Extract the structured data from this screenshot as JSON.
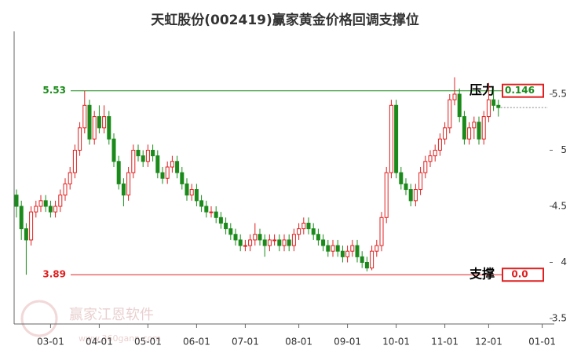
{
  "chart_data": {
    "type": "candlestick",
    "title": "天虹股份(002419)赢家黄金价格回调支撑位",
    "watermark": "赢家江恩软件",
    "watermark_url": "www.360gann.com",
    "up_color": "#e02020",
    "down_color": "#1a8a1a",
    "ylim": [
      3.5,
      6.0
    ],
    "yticks": [
      3.5,
      4,
      4.5,
      5,
      5.5
    ],
    "resistance": {
      "value": 5.53,
      "label": "5.53",
      "name": "压力",
      "distance": 0.146,
      "color": "#1a8a1a"
    },
    "support": {
      "value": 3.89,
      "label": "3.89",
      "name": "支撑",
      "distance": 0,
      "distance_label": "0.0",
      "color": "#e02020"
    },
    "categories": [
      null,
      null,
      null,
      null,
      null,
      null,
      null,
      "03-01",
      null,
      null,
      null,
      null,
      null,
      null,
      null,
      null,
      null,
      "04-01",
      null,
      null,
      null,
      null,
      null,
      null,
      null,
      null,
      null,
      "05-01",
      null,
      null,
      null,
      null,
      null,
      null,
      null,
      null,
      null,
      "06-01",
      null,
      null,
      null,
      null,
      null,
      null,
      null,
      null,
      null,
      "07-01",
      null,
      null,
      null,
      null,
      null,
      null,
      null,
      null,
      null,
      null,
      "08-01",
      null,
      null,
      null,
      null,
      null,
      null,
      null,
      null,
      null,
      "09-01",
      null,
      null,
      null,
      null,
      null,
      null,
      null,
      null,
      null,
      "10-01",
      null,
      null,
      null,
      null,
      null,
      null,
      null,
      null,
      null,
      "11-01",
      null,
      null,
      null,
      null,
      null,
      null,
      null,
      null,
      "12-01",
      null,
      null,
      null,
      null,
      null,
      null,
      null,
      null,
      null,
      null,
      "01-01",
      null,
      null
    ],
    "ohlc": [
      [
        4.6,
        4.65,
        4.4,
        4.5
      ],
      [
        4.5,
        4.55,
        4.2,
        4.3
      ],
      [
        4.3,
        4.35,
        3.89,
        4.2
      ],
      [
        4.2,
        4.5,
        4.15,
        4.45
      ],
      [
        4.45,
        4.55,
        4.4,
        4.5
      ],
      [
        4.5,
        4.6,
        4.45,
        4.55
      ],
      [
        4.55,
        4.6,
        4.45,
        4.5
      ],
      [
        4.5,
        4.55,
        4.4,
        4.45
      ],
      [
        4.45,
        4.55,
        4.4,
        4.5
      ],
      [
        4.5,
        4.65,
        4.45,
        4.6
      ],
      [
        4.6,
        4.75,
        4.55,
        4.7
      ],
      [
        4.7,
        4.85,
        4.65,
        4.8
      ],
      [
        4.8,
        5.05,
        4.75,
        5.0
      ],
      [
        5.0,
        5.25,
        4.95,
        5.2
      ],
      [
        5.2,
        5.53,
        5.15,
        5.4
      ],
      [
        5.4,
        5.45,
        5.05,
        5.1
      ],
      [
        5.1,
        5.35,
        5.05,
        5.3
      ],
      [
        5.3,
        5.4,
        5.15,
        5.2
      ],
      [
        5.2,
        5.4,
        5.15,
        5.3
      ],
      [
        5.3,
        5.35,
        5.05,
        5.1
      ],
      [
        5.1,
        5.15,
        4.85,
        4.9
      ],
      [
        4.9,
        4.95,
        4.65,
        4.7
      ],
      [
        4.7,
        4.75,
        4.5,
        4.6
      ],
      [
        4.6,
        4.85,
        4.55,
        4.8
      ],
      [
        4.8,
        5.05,
        4.75,
        5.0
      ],
      [
        5.0,
        5.05,
        4.9,
        4.95
      ],
      [
        4.95,
        5.0,
        4.85,
        4.9
      ],
      [
        4.9,
        5.05,
        4.85,
        5.0
      ],
      [
        5.0,
        5.05,
        4.9,
        4.95
      ],
      [
        4.95,
        5.0,
        4.75,
        4.8
      ],
      [
        4.8,
        4.85,
        4.7,
        4.75
      ],
      [
        4.75,
        4.9,
        4.7,
        4.85
      ],
      [
        4.85,
        4.95,
        4.8,
        4.9
      ],
      [
        4.9,
        4.95,
        4.75,
        4.8
      ],
      [
        4.8,
        4.85,
        4.65,
        4.7
      ],
      [
        4.7,
        4.75,
        4.55,
        4.6
      ],
      [
        4.6,
        4.7,
        4.55,
        4.65
      ],
      [
        4.65,
        4.7,
        4.5,
        4.55
      ],
      [
        4.55,
        4.6,
        4.45,
        4.5
      ],
      [
        4.5,
        4.55,
        4.4,
        4.45
      ],
      [
        4.45,
        4.5,
        4.4,
        4.45
      ],
      [
        4.45,
        4.5,
        4.35,
        4.4
      ],
      [
        4.4,
        4.45,
        4.3,
        4.35
      ],
      [
        4.35,
        4.4,
        4.25,
        4.3
      ],
      [
        4.3,
        4.35,
        4.2,
        4.25
      ],
      [
        4.25,
        4.3,
        4.15,
        4.2
      ],
      [
        4.2,
        4.25,
        4.1,
        4.15
      ],
      [
        4.15,
        4.2,
        4.1,
        4.15
      ],
      [
        4.15,
        4.25,
        4.1,
        4.2
      ],
      [
        4.2,
        4.35,
        4.15,
        4.25
      ],
      [
        4.25,
        4.3,
        4.15,
        4.2
      ],
      [
        4.2,
        4.25,
        4.05,
        4.15
      ],
      [
        4.15,
        4.25,
        4.1,
        4.2
      ],
      [
        4.2,
        4.25,
        4.15,
        4.2
      ],
      [
        4.2,
        4.25,
        4.1,
        4.15
      ],
      [
        4.15,
        4.25,
        4.1,
        4.2
      ],
      [
        4.2,
        4.25,
        4.1,
        4.15
      ],
      [
        4.15,
        4.3,
        4.1,
        4.25
      ],
      [
        4.25,
        4.35,
        4.2,
        4.3
      ],
      [
        4.3,
        4.4,
        4.25,
        4.35
      ],
      [
        4.35,
        4.4,
        4.25,
        4.3
      ],
      [
        4.3,
        4.35,
        4.2,
        4.25
      ],
      [
        4.25,
        4.3,
        4.15,
        4.2
      ],
      [
        4.2,
        4.25,
        4.1,
        4.15
      ],
      [
        4.15,
        4.2,
        4.05,
        4.1
      ],
      [
        4.1,
        4.2,
        4.05,
        4.15
      ],
      [
        4.15,
        4.2,
        4.05,
        4.1
      ],
      [
        4.1,
        4.15,
        4.0,
        4.05
      ],
      [
        4.05,
        4.15,
        4.0,
        4.1
      ],
      [
        4.1,
        4.2,
        4.05,
        4.15
      ],
      [
        4.15,
        4.2,
        4.0,
        4.05
      ],
      [
        4.05,
        4.1,
        3.95,
        4.0
      ],
      [
        4.0,
        4.05,
        3.92,
        3.95
      ],
      [
        3.95,
        4.15,
        3.93,
        4.1
      ],
      [
        4.1,
        4.2,
        4.05,
        4.15
      ],
      [
        4.15,
        4.45,
        4.1,
        4.4
      ],
      [
        4.4,
        4.85,
        4.35,
        4.8
      ],
      [
        4.8,
        5.45,
        4.75,
        5.4
      ],
      [
        5.4,
        5.45,
        4.75,
        4.8
      ],
      [
        4.8,
        4.85,
        4.65,
        4.7
      ],
      [
        4.7,
        4.75,
        4.6,
        4.65
      ],
      [
        4.65,
        4.7,
        4.5,
        4.55
      ],
      [
        4.55,
        4.7,
        4.5,
        4.65
      ],
      [
        4.65,
        4.85,
        4.6,
        4.8
      ],
      [
        4.8,
        4.95,
        4.75,
        4.9
      ],
      [
        4.9,
        5.0,
        4.85,
        4.95
      ],
      [
        4.95,
        5.05,
        4.9,
        5.0
      ],
      [
        5.0,
        5.15,
        4.95,
        5.1
      ],
      [
        5.1,
        5.25,
        5.05,
        5.2
      ],
      [
        5.2,
        5.5,
        5.15,
        5.45
      ],
      [
        5.45,
        5.65,
        5.4,
        5.5
      ],
      [
        5.5,
        5.55,
        5.25,
        5.3
      ],
      [
        5.3,
        5.35,
        5.05,
        5.1
      ],
      [
        5.1,
        5.25,
        5.05,
        5.2
      ],
      [
        5.2,
        5.3,
        5.1,
        5.25
      ],
      [
        5.25,
        5.3,
        5.05,
        5.1
      ],
      [
        5.1,
        5.35,
        5.05,
        5.3
      ],
      [
        5.3,
        5.6,
        5.25,
        5.45
      ],
      [
        5.45,
        5.55,
        5.35,
        5.4
      ],
      [
        5.4,
        5.45,
        5.3,
        5.38
      ],
      null,
      null,
      null,
      null,
      null,
      null,
      null,
      null,
      null,
      null,
      null
    ]
  }
}
